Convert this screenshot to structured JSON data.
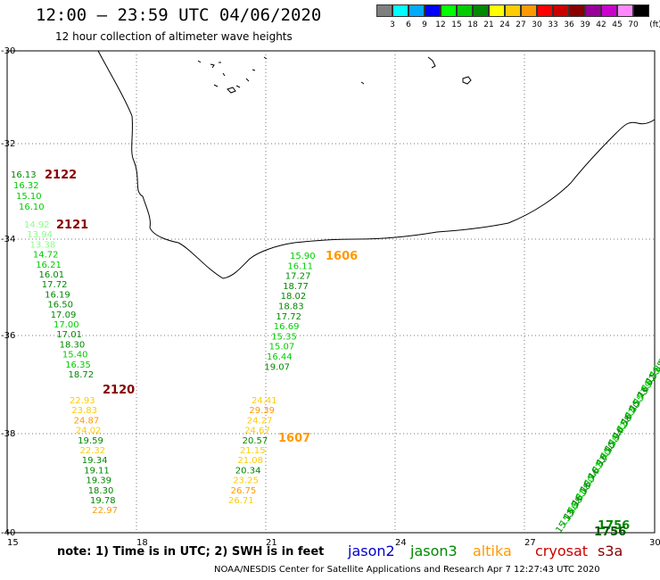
{
  "header": {
    "title": "12:00 – 23:59 UTC 04/06/2020",
    "subtitle": "12 hour collection of altimeter wave heights"
  },
  "scale": {
    "unit": "(ft)",
    "colors": [
      "#7f7f7f",
      "#00ffff",
      "#00aaff",
      "#0000ff",
      "#00ff00",
      "#00cc00",
      "#008800",
      "#ffff00",
      "#ffcc00",
      "#ff9900",
      "#ff0000",
      "#cc0000",
      "#880000",
      "#990099",
      "#cc00cc",
      "#ff88ff",
      "#000000"
    ],
    "labels": [
      "3",
      "6",
      "9",
      "12",
      "15",
      "18",
      "21",
      "24",
      "27",
      "30",
      "33",
      "36",
      "39",
      "42",
      "45",
      "70"
    ]
  },
  "axes": {
    "x_labels": [
      "15",
      "18",
      "21",
      "24",
      "27",
      "30"
    ],
    "y_labels": [
      "-30",
      "-32",
      "-34",
      "-36",
      "-38",
      "-40"
    ]
  },
  "tracks": [
    {
      "name": "track-2122",
      "values": [
        "16.13",
        "16.32",
        "15.10",
        "16.10"
      ],
      "colors": [
        "#008800",
        "#00cc00",
        "#00cc00",
        "#00cc00"
      ],
      "label": "2122",
      "label_color": "#880000"
    },
    {
      "name": "track-2121",
      "values": [
        "14.92",
        "13.94",
        "13.38",
        "14.72",
        "16.21",
        "16.01",
        "17.72",
        "16.19",
        "16.50",
        "17.09",
        "17.00",
        "17.01",
        "18.30",
        "15.40",
        "16.35",
        "18.72"
      ],
      "colors": [
        "#88ff88",
        "#88ff88",
        "#88ff88",
        "#00cc00",
        "#00cc00",
        "#008800",
        "#008800",
        "#008800",
        "#008800",
        "#008800",
        "#00cc00",
        "#008800",
        "#008800",
        "#00cc00",
        "#00cc00",
        "#008800"
      ],
      "label": "2121",
      "label_color": "#880000"
    },
    {
      "name": "track-2120",
      "values": [
        "22.93",
        "23.83",
        "24.87",
        "24.02",
        "19.59",
        "22.32",
        "19.34",
        "19.11",
        "19.39",
        "18.30",
        "19.78",
        "22.97"
      ],
      "colors": [
        "#ffcc00",
        "#ffcc00",
        "#ff9900",
        "#ffcc00",
        "#008800",
        "#ffcc00",
        "#008800",
        "#008800",
        "#008800",
        "#008800",
        "#008800",
        "#ff9900"
      ],
      "label": "2120",
      "label_color": "#880000"
    },
    {
      "name": "track-1606",
      "values": [
        "15.90",
        "16.11",
        "17.27",
        "18.77",
        "18.02",
        "18.83",
        "17.72",
        "16.69",
        "15.35",
        "15.07",
        "16.44",
        "19.07"
      ],
      "colors": [
        "#00cc00",
        "#00cc00",
        "#008800",
        "#008800",
        "#008800",
        "#008800",
        "#008800",
        "#00cc00",
        "#00cc00",
        "#00cc00",
        "#00cc00",
        "#008800"
      ],
      "label": "1606",
      "label_color": "#ff9900"
    },
    {
      "name": "track-1607",
      "values": [
        "24.41",
        "29.39",
        "24.27",
        "24.67",
        "20.57",
        "21.15",
        "21.08",
        "20.34",
        "23.25",
        "26.75",
        "26.71"
      ],
      "colors": [
        "#ffcc00",
        "#ff9900",
        "#ffcc00",
        "#ffcc00",
        "#008800",
        "#ffcc00",
        "#ffcc00",
        "#008800",
        "#ffcc00",
        "#ff9900",
        "#ffcc00"
      ],
      "label": "1607",
      "label_color": "#ff9900"
    }
  ],
  "track_1756": {
    "label": "1756",
    "label_color": "#008800",
    "values": [
      "15.13",
      "15.16",
      "15.38",
      "15.81",
      "16.18",
      "15.50",
      "16.74",
      "15.67",
      "16.32",
      "15.70",
      "16.10",
      "15.28",
      "15.94",
      "15.42",
      "16.58",
      "15.97",
      "16.20",
      "15.55",
      "15.73",
      "15.19",
      "16.02",
      "15.33",
      "15.88",
      "15.61"
    ]
  },
  "legend": {
    "note": "note: 1) Time is in UTC; 2) SWH is in feet",
    "satellites": [
      {
        "name": "jason2",
        "color": "#0000cc"
      },
      {
        "name": "jason3",
        "color": "#008800"
      },
      {
        "name": "altika",
        "color": "#ff9900"
      },
      {
        "name": "cryosat",
        "color": "#cc0000"
      },
      {
        "name": "s3a",
        "color": "#880000"
      }
    ]
  },
  "footer": {
    "credit": "NOAA/NESDIS Center for Satellite Applications and Research    Apr  7 12:27:43 UTC 2020"
  }
}
